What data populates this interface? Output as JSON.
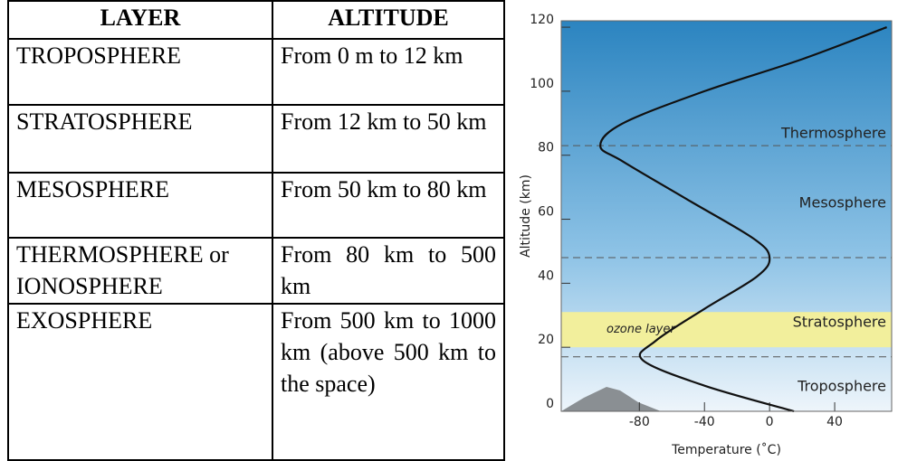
{
  "table": {
    "header": [
      "LAYER",
      "ALTITUDE"
    ],
    "rows": [
      [
        "TROPOSPHERE",
        "From 0 m to 12 km"
      ],
      [
        "STRATOSPHERE",
        "From 12 km to 50 km"
      ],
      [
        "MESOSPHERE",
        "From 50 km to 80 km"
      ],
      [
        "THERMOSPHERE or IONOSPHERE",
        "From 80 km to 500 km"
      ],
      [
        "EXOSPHERE",
        "From 500 km to 1000 km (above 500 km to the space)"
      ]
    ]
  },
  "chart_data": {
    "type": "line",
    "x_label": "Temperature (˚C)",
    "y_label": "Altitude (km)",
    "x": [
      15,
      -40,
      -78,
      -70,
      -40,
      -8,
      0,
      -10,
      -50,
      -90,
      -104,
      -90,
      -40,
      20,
      72
    ],
    "values": [
      0,
      8,
      16,
      22,
      32,
      42,
      48,
      54,
      66,
      78,
      83,
      90,
      100,
      110,
      120
    ],
    "color": "#111111",
    "xlim": [
      -128,
      75
    ],
    "xticks": [
      -80,
      -40,
      0,
      40
    ],
    "ylim": [
      0,
      122
    ],
    "yticks": [
      0,
      20,
      40,
      60,
      80,
      100,
      120
    ],
    "boundaries": [
      17,
      48,
      83
    ],
    "band": {
      "label": "ozone layer",
      "range": [
        20,
        31
      ],
      "color": "#f2ef9c"
    },
    "annotations": [
      "Thermosphere",
      "Mesosphere",
      "Stratosphere",
      "Troposphere"
    ]
  }
}
